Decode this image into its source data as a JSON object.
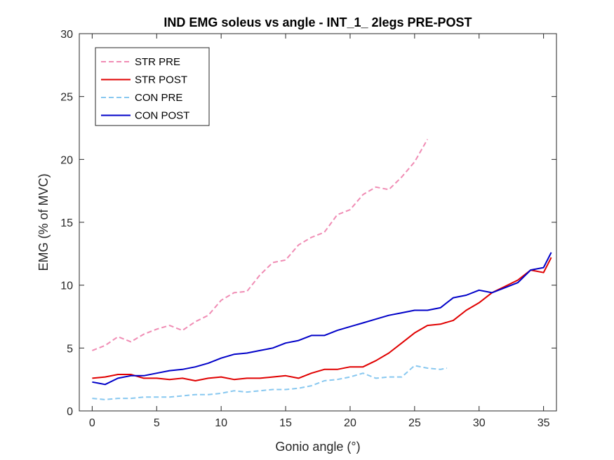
{
  "chart_data": {
    "type": "line",
    "title": "IND EMG soleus vs angle - INT_1_ 2legs PRE-POST",
    "xlabel": "Gonio angle (°)",
    "ylabel": "EMG (% of MVC)",
    "xlim": [
      -1,
      36
    ],
    "ylim": [
      0,
      30
    ],
    "xticks": [
      0,
      5,
      10,
      15,
      20,
      25,
      30,
      35
    ],
    "yticks": [
      0,
      5,
      10,
      15,
      20,
      25,
      30
    ],
    "grid": false,
    "legend_position": "top-left",
    "series": [
      {
        "name": "STR PRE",
        "color": "#f08cb4",
        "dash": true,
        "x": [
          0,
          1,
          2,
          3,
          4,
          5,
          6,
          7,
          8,
          9,
          10,
          11,
          12,
          13,
          14,
          15,
          16,
          17,
          18,
          19,
          20,
          21,
          22,
          23,
          24,
          25,
          26
        ],
        "y": [
          4.8,
          5.2,
          5.9,
          5.5,
          6.1,
          6.5,
          6.8,
          6.4,
          7.1,
          7.6,
          8.8,
          9.4,
          9.5,
          10.8,
          11.8,
          12.0,
          13.2,
          13.8,
          14.2,
          15.6,
          16.0,
          17.2,
          17.8,
          17.6,
          18.6,
          19.8,
          21.6
        ]
      },
      {
        "name": "STR POST",
        "color": "#e00000",
        "dash": false,
        "x": [
          0,
          1,
          2,
          3,
          4,
          5,
          6,
          7,
          8,
          9,
          10,
          11,
          12,
          13,
          14,
          15,
          16,
          17,
          18,
          19,
          20,
          21,
          22,
          23,
          24,
          25,
          26,
          27,
          28,
          29,
          30,
          31,
          32,
          33,
          34,
          35,
          35.6
        ],
        "y": [
          2.6,
          2.7,
          2.9,
          2.9,
          2.6,
          2.6,
          2.5,
          2.6,
          2.4,
          2.6,
          2.7,
          2.5,
          2.6,
          2.6,
          2.7,
          2.8,
          2.6,
          3.0,
          3.3,
          3.3,
          3.5,
          3.5,
          4.0,
          4.6,
          5.4,
          6.2,
          6.8,
          6.9,
          7.2,
          8.0,
          8.6,
          9.4,
          9.9,
          10.4,
          11.2,
          11.0,
          12.2
        ]
      },
      {
        "name": "CON PRE",
        "color": "#88c8f0",
        "dash": true,
        "x": [
          0,
          1,
          2,
          3,
          4,
          5,
          6,
          7,
          8,
          9,
          10,
          11,
          12,
          13,
          14,
          15,
          16,
          17,
          18,
          19,
          20,
          21,
          22,
          23,
          24,
          25,
          26,
          27,
          27.5
        ],
        "y": [
          1.0,
          0.9,
          1.0,
          1.0,
          1.1,
          1.1,
          1.1,
          1.2,
          1.3,
          1.3,
          1.4,
          1.6,
          1.5,
          1.6,
          1.7,
          1.7,
          1.8,
          2.0,
          2.4,
          2.5,
          2.7,
          3.0,
          2.6,
          2.7,
          2.7,
          3.6,
          3.4,
          3.3,
          3.4
        ]
      },
      {
        "name": "CON POST",
        "color": "#0000c8",
        "dash": false,
        "x": [
          0,
          0.5,
          1,
          2,
          3,
          4,
          5,
          6,
          7,
          8,
          9,
          10,
          11,
          12,
          13,
          14,
          15,
          16,
          17,
          18,
          19,
          20,
          21,
          22,
          23,
          24,
          25,
          26,
          27,
          28,
          29,
          30,
          31,
          32,
          33,
          34,
          35,
          35.6
        ],
        "y": [
          2.3,
          2.2,
          2.1,
          2.6,
          2.8,
          2.8,
          3.0,
          3.2,
          3.3,
          3.5,
          3.8,
          4.2,
          4.5,
          4.6,
          4.8,
          5.0,
          5.4,
          5.6,
          6.0,
          6.0,
          6.4,
          6.7,
          7.0,
          7.3,
          7.6,
          7.8,
          8.0,
          8.0,
          8.2,
          9.0,
          9.2,
          9.6,
          9.4,
          9.8,
          10.2,
          11.2,
          11.4,
          12.6
        ]
      }
    ]
  }
}
